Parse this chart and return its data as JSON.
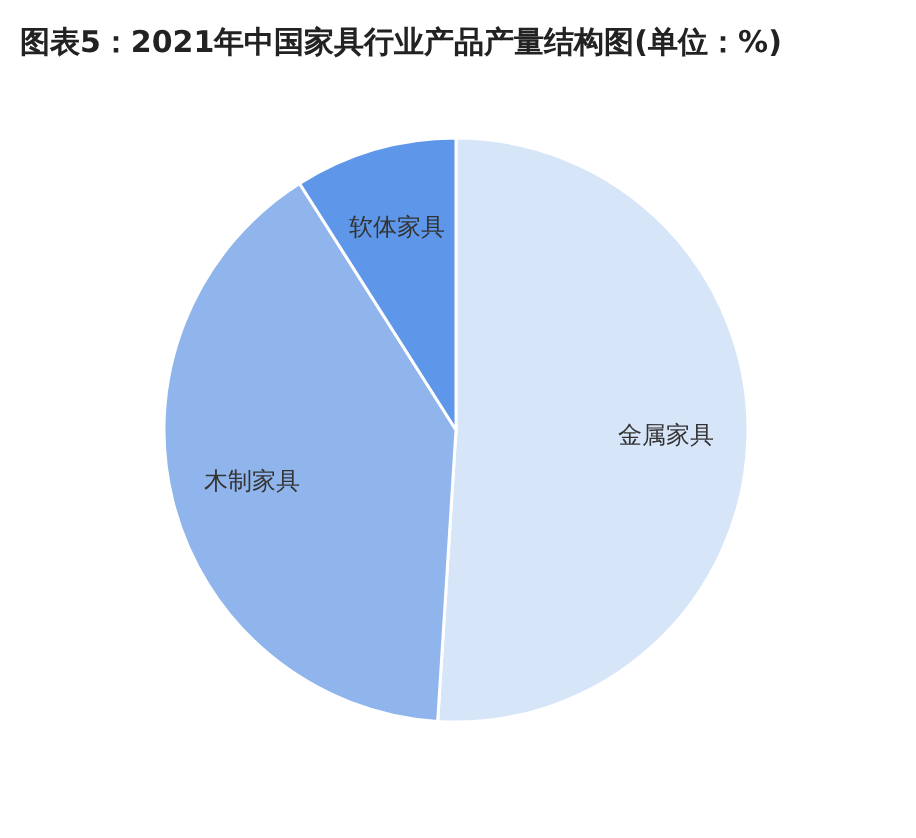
{
  "chart_data": {
    "type": "pie",
    "title": "图表5：2021年中国家具行业产品产量结构图(单位：%)",
    "categories": [
      "金属家具",
      "木制家具",
      "软体家具"
    ],
    "values": [
      51,
      40,
      9
    ],
    "colors": [
      "#d7e5f9",
      "#8fb5ec",
      "#5e97e9"
    ]
  }
}
